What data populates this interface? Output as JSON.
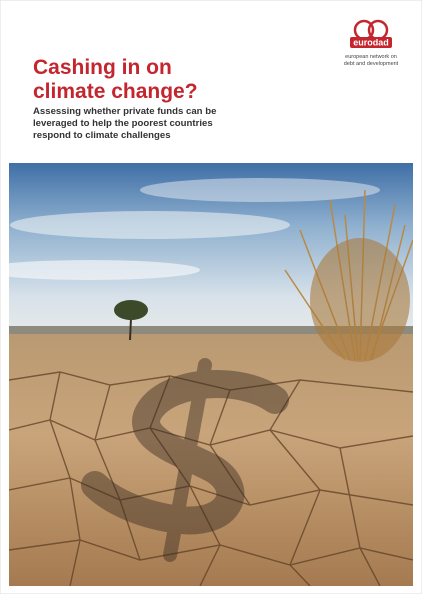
{
  "header": {
    "title_lines": [
      "Cashing in on",
      "climate change?"
    ],
    "subtitle_lines": [
      "Assessing whether private funds can be",
      "leveraged to help the poorest countries",
      "respond to climate challenges"
    ]
  },
  "logo": {
    "name": "eurodad",
    "tagline_lines": [
      "european network on",
      "debt and development"
    ]
  }
}
